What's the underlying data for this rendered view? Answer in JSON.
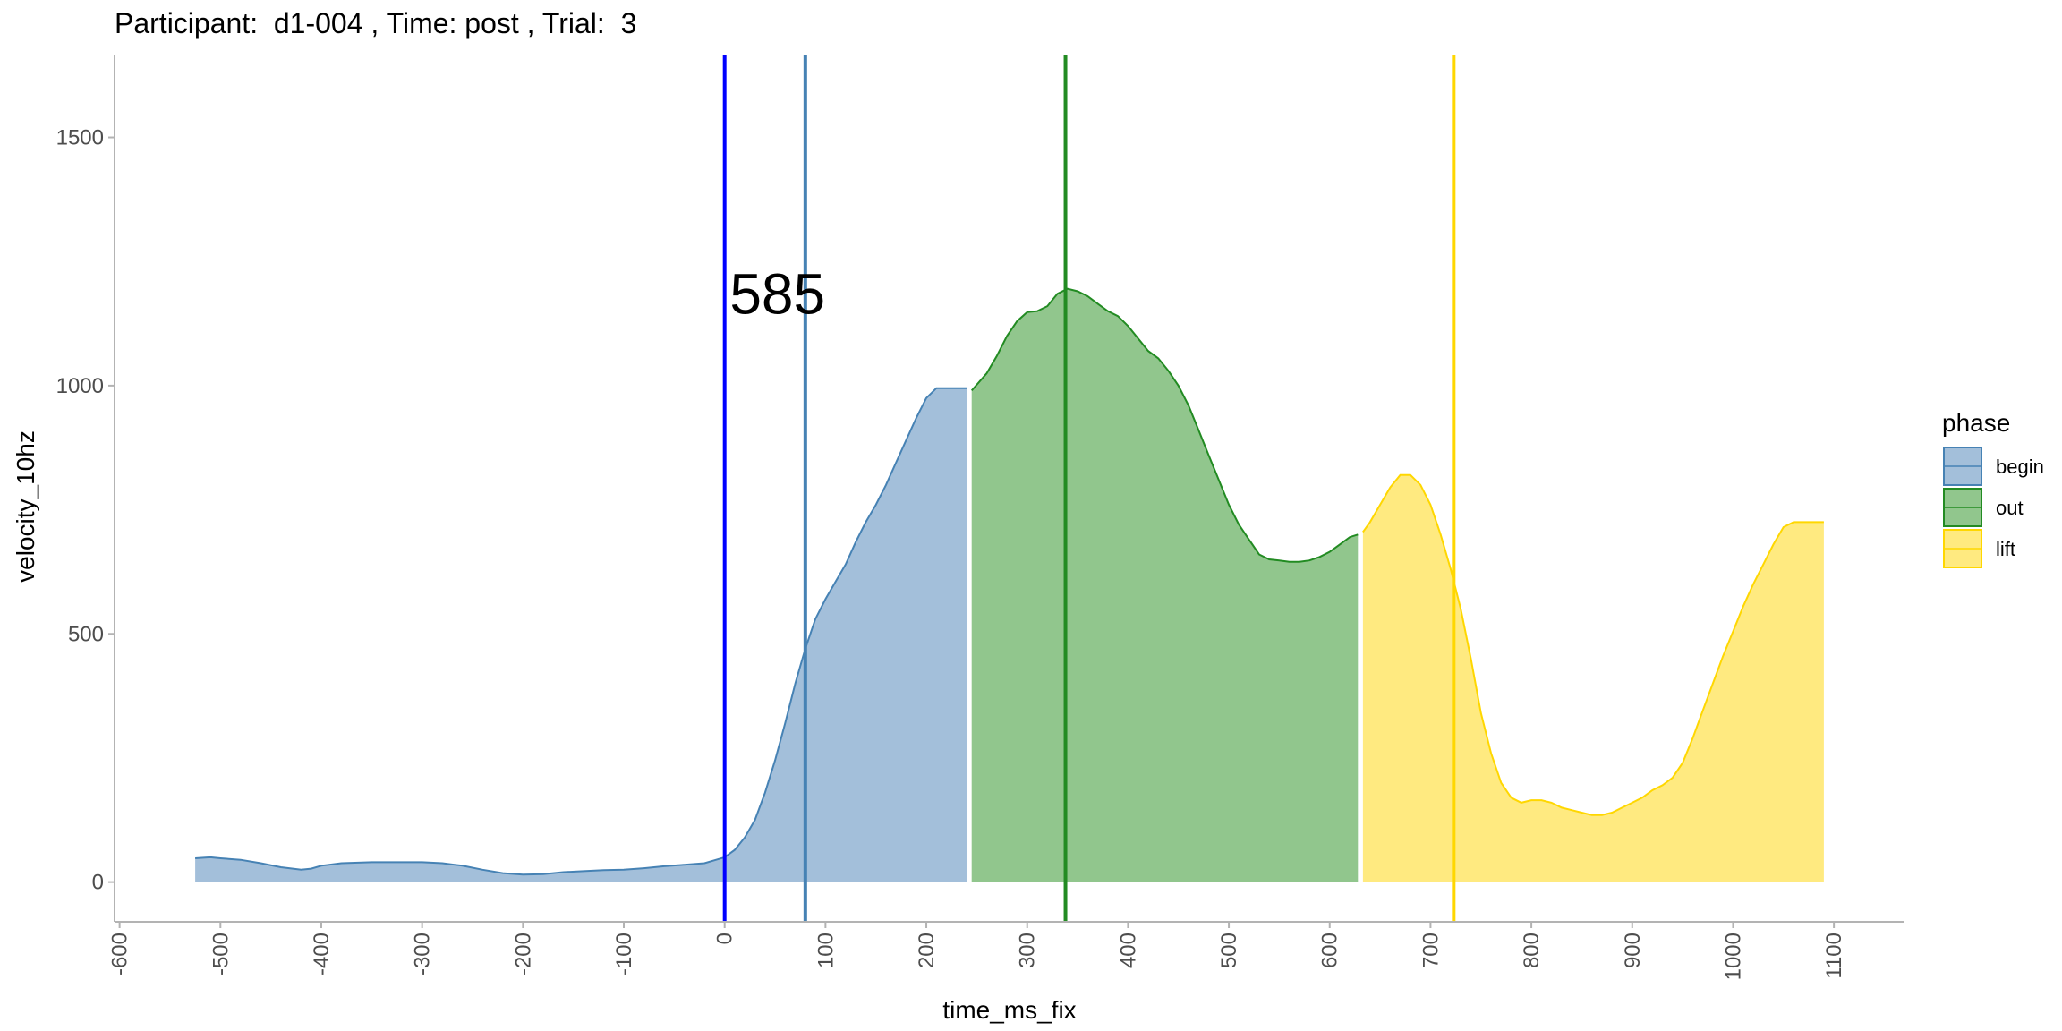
{
  "chart_data": {
    "type": "area",
    "title": "Participant:  d1-004 , Time: post , Trial:  3",
    "xlabel": "time_ms_fix",
    "ylabel": "velocity_10hz",
    "xlim": [
      -605,
      1170
    ],
    "ylim": [
      -80,
      1665
    ],
    "x_ticks": [
      -600,
      -500,
      -400,
      -300,
      -200,
      -100,
      0,
      100,
      200,
      300,
      400,
      500,
      600,
      700,
      800,
      900,
      1000,
      1100
    ],
    "y_ticks": [
      0,
      500,
      1000,
      1500
    ],
    "grid": false,
    "legend": {
      "title": "phase",
      "position": "right",
      "entries": [
        {
          "label": "begin",
          "fill": "#A3BFDA",
          "stroke": "#4682B4"
        },
        {
          "label": "out",
          "fill": "#91C68D",
          "stroke": "#228B22"
        },
        {
          "label": "lift",
          "fill": "#FFEA80",
          "stroke": "#FFD700"
        }
      ]
    },
    "series": [
      {
        "name": "begin",
        "fill": "#A3BFDA",
        "stroke": "#4682B4",
        "x": [
          -525,
          -510,
          -500,
          -480,
          -460,
          -440,
          -420,
          -410,
          -400,
          -380,
          -350,
          -320,
          -300,
          -280,
          -260,
          -240,
          -220,
          -200,
          -180,
          -160,
          -140,
          -120,
          -100,
          -80,
          -60,
          -40,
          -20,
          0,
          10,
          20,
          30,
          40,
          50,
          60,
          70,
          80,
          90,
          100,
          110,
          120,
          130,
          140,
          150,
          160,
          170,
          180,
          190,
          200,
          210,
          220,
          230,
          240
        ],
        "y": [
          48,
          50,
          48,
          45,
          38,
          30,
          25,
          27,
          33,
          38,
          40,
          40,
          40,
          38,
          33,
          25,
          18,
          15,
          16,
          20,
          22,
          24,
          25,
          28,
          32,
          35,
          38,
          50,
          65,
          90,
          125,
          180,
          245,
          320,
          400,
          470,
          530,
          570,
          605,
          640,
          685,
          725,
          760,
          800,
          845,
          890,
          935,
          975,
          995,
          995,
          995,
          995
        ]
      },
      {
        "name": "out",
        "fill": "#91C68D",
        "stroke": "#228B22",
        "x": [
          245,
          260,
          270,
          280,
          290,
          300,
          310,
          320,
          330,
          340,
          350,
          360,
          370,
          380,
          390,
          400,
          410,
          420,
          430,
          440,
          450,
          460,
          470,
          480,
          490,
          500,
          510,
          520,
          530,
          540,
          550,
          560,
          570,
          580,
          590,
          600,
          610,
          620,
          628
        ],
        "y": [
          990,
          1025,
          1060,
          1100,
          1130,
          1148,
          1150,
          1160,
          1185,
          1195,
          1190,
          1180,
          1165,
          1150,
          1140,
          1120,
          1095,
          1070,
          1055,
          1030,
          1000,
          960,
          910,
          860,
          810,
          760,
          720,
          690,
          660,
          650,
          648,
          645,
          645,
          648,
          655,
          665,
          680,
          695,
          700
        ]
      },
      {
        "name": "lift",
        "fill": "#FFEA80",
        "stroke": "#FFD700",
        "x": [
          633,
          640,
          650,
          660,
          670,
          680,
          690,
          700,
          710,
          720,
          730,
          740,
          750,
          760,
          770,
          780,
          790,
          800,
          810,
          820,
          830,
          840,
          850,
          860,
          870,
          880,
          890,
          900,
          910,
          920,
          930,
          940,
          950,
          960,
          970,
          980,
          990,
          1000,
          1010,
          1020,
          1030,
          1040,
          1050,
          1060,
          1070,
          1080,
          1090
        ],
        "y": [
          705,
          725,
          760,
          795,
          820,
          820,
          800,
          760,
          700,
          630,
          550,
          450,
          340,
          260,
          200,
          170,
          160,
          165,
          165,
          160,
          150,
          145,
          140,
          135,
          135,
          140,
          150,
          160,
          170,
          185,
          195,
          210,
          240,
          290,
          345,
          400,
          455,
          505,
          555,
          600,
          640,
          680,
          715,
          725,
          725,
          725,
          725
        ]
      }
    ],
    "vlines": [
      {
        "x": 0,
        "color": "#0000FF"
      },
      {
        "x": 80,
        "color": "#4682B4"
      },
      {
        "x": 338,
        "color": "#228B22"
      },
      {
        "x": 723,
        "color": "#FFD700"
      }
    ],
    "annotation": {
      "text": "585",
      "x": 5,
      "y": 1185
    }
  }
}
